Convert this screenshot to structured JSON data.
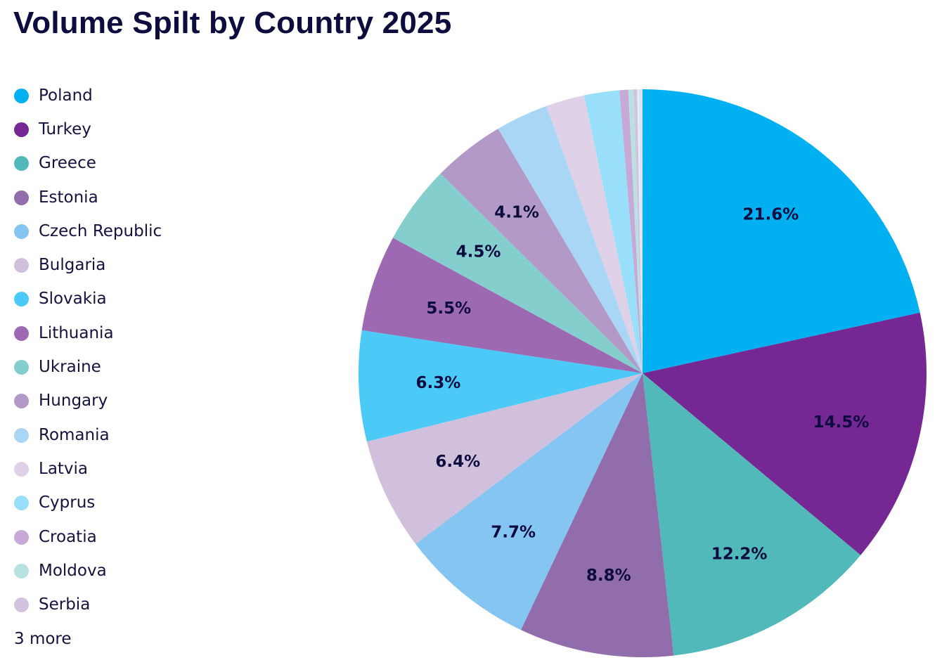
{
  "chart_data": {
    "type": "pie",
    "title": "Volume Spilt by Country 2025",
    "legend_position": "left",
    "legend_overflow_label": "3 more",
    "slices": [
      {
        "label": "Poland",
        "value": 21.6,
        "display": "21.6%",
        "color": "#00b0f0"
      },
      {
        "label": "Turkey",
        "value": 14.5,
        "display": "14.5%",
        "color": "#752794"
      },
      {
        "label": "Greece",
        "value": 12.2,
        "display": "12.2%",
        "color": "#51b9b9"
      },
      {
        "label": "Estonia",
        "value": 8.8,
        "display": "8.8%",
        "color": "#926dab"
      },
      {
        "label": "Czech Republic",
        "value": 7.7,
        "display": "7.7%",
        "color": "#84c5f1"
      },
      {
        "label": "Bulgaria",
        "value": 6.4,
        "display": "6.4%",
        "color": "#d1c0dc"
      },
      {
        "label": "Slovakia",
        "value": 6.3,
        "display": "6.3%",
        "color": "#4ccaf7"
      },
      {
        "label": "Lithuania",
        "value": 5.5,
        "display": "5.5%",
        "color": "#9d69b3"
      },
      {
        "label": "Ukraine",
        "value": 4.5,
        "display": "4.5%",
        "color": "#85cece"
      },
      {
        "label": "Hungary",
        "value": 4.1,
        "display": "4.1%",
        "color": "#b399c7"
      },
      {
        "label": "Romania",
        "value": 3.0,
        "display": "",
        "color": "#a9d6f5"
      },
      {
        "label": "Latvia",
        "value": 2.2,
        "display": "",
        "color": "#dfd2e8"
      },
      {
        "label": "Cyprus",
        "value": 2.0,
        "display": "",
        "color": "#99dff9"
      },
      {
        "label": "Croatia",
        "value": 0.5,
        "display": "",
        "color": "#c6a9d6"
      },
      {
        "label": "Moldova",
        "value": 0.3,
        "display": "",
        "color": "#b8e2e2"
      },
      {
        "label": "Serbia",
        "value": 0.2,
        "display": "",
        "color": "#d2c3df"
      },
      {
        "label": "",
        "value": 0.1,
        "display": "",
        "color": "#e6eef8"
      },
      {
        "label": "",
        "value": 0.1,
        "display": "",
        "color": "#cfe6f8"
      },
      {
        "label": "",
        "value": 0.1,
        "display": "",
        "color": "#e9dff0"
      }
    ]
  }
}
